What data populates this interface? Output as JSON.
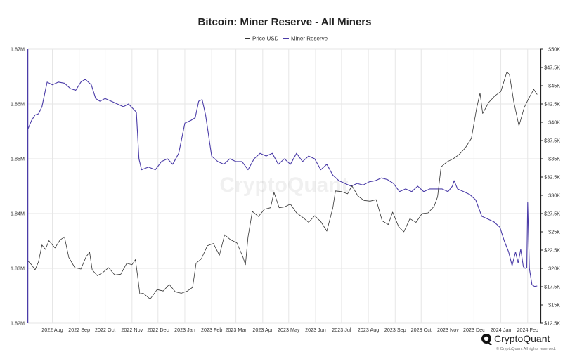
{
  "chart_data": {
    "type": "line",
    "title": "Bitcoin: Miner Reserve - All Miners",
    "legend": {
      "placement": "top-center",
      "entries": [
        "Price USD",
        "Miner Reserve"
      ]
    },
    "grid": true,
    "x_ticks": [
      "2022 Aug",
      "2022 Sep",
      "2022 Oct",
      "2022 Nov",
      "2022 Dec",
      "2023 Jan",
      "2023 Feb",
      "2023 Mar",
      "2023 Apr",
      "2023 May",
      "2023 Jun",
      "2023 Jul",
      "2023 Aug",
      "2023 Sep",
      "2023 Oct",
      "2023 Nov",
      "2023 Dec",
      "2024 Jan",
      "2024 Feb"
    ],
    "x_range": [
      "2022-07-04",
      "2024-02-15"
    ],
    "y_left": {
      "ticks": [
        "1.87M",
        "1.86M",
        "1.85M",
        "1.84M",
        "1.83M",
        "1.82M"
      ],
      "range": [
        1.82,
        1.87
      ],
      "unit": "M BTC"
    },
    "y_right": {
      "ticks": [
        "$50K",
        "$47.5K",
        "$45K",
        "$42.5K",
        "$40K",
        "$37.5K",
        "$35K",
        "$32.5K",
        "$30K",
        "$27.5K",
        "$25K",
        "$22.5K",
        "$20K",
        "$17.5K",
        "$15K",
        "$12.5K"
      ],
      "range": [
        12.5,
        50
      ],
      "unit": "K USD"
    },
    "series": [
      {
        "name": "Miner Reserve",
        "color": "#4b3ca8",
        "axis": "left",
        "points": [
          [
            "2022-07-04",
            1.8555
          ],
          [
            "2022-07-08",
            1.857
          ],
          [
            "2022-07-12",
            1.858
          ],
          [
            "2022-07-16",
            1.8582
          ],
          [
            "2022-07-20",
            1.8595
          ],
          [
            "2022-07-24",
            1.8625
          ],
          [
            "2022-07-26",
            1.864
          ],
          [
            "2022-08-01",
            1.8635
          ],
          [
            "2022-08-08",
            1.864
          ],
          [
            "2022-08-15",
            1.8638
          ],
          [
            "2022-08-22",
            1.8628
          ],
          [
            "2022-08-28",
            1.8625
          ],
          [
            "2022-09-03",
            1.864
          ],
          [
            "2022-09-08",
            1.8645
          ],
          [
            "2022-09-15",
            1.8635
          ],
          [
            "2022-09-20",
            1.861
          ],
          [
            "2022-09-25",
            1.8605
          ],
          [
            "2022-10-01",
            1.861
          ],
          [
            "2022-10-08",
            1.8605
          ],
          [
            "2022-10-15",
            1.86
          ],
          [
            "2022-10-22",
            1.8595
          ],
          [
            "2022-10-28",
            1.86
          ],
          [
            "2022-11-03",
            1.859
          ],
          [
            "2022-11-06",
            1.8585
          ],
          [
            "2022-11-09",
            1.85
          ],
          [
            "2022-11-12",
            1.848
          ],
          [
            "2022-11-20",
            1.8485
          ],
          [
            "2022-11-28",
            1.848
          ],
          [
            "2022-12-05",
            1.8495
          ],
          [
            "2022-12-12",
            1.85
          ],
          [
            "2022-12-18",
            1.849
          ],
          [
            "2022-12-25",
            1.851
          ],
          [
            "2023-01-01",
            1.8565
          ],
          [
            "2023-01-08",
            1.857
          ],
          [
            "2023-01-13",
            1.8575
          ],
          [
            "2023-01-17",
            1.8605
          ],
          [
            "2023-01-21",
            1.8608
          ],
          [
            "2023-01-25",
            1.858
          ],
          [
            "2023-02-01",
            1.8505
          ],
          [
            "2023-02-08",
            1.8495
          ],
          [
            "2023-02-15",
            1.849
          ],
          [
            "2023-02-22",
            1.85
          ],
          [
            "2023-03-01",
            1.8495
          ],
          [
            "2023-03-08",
            1.8495
          ],
          [
            "2023-03-15",
            1.848
          ],
          [
            "2023-03-22",
            1.85
          ],
          [
            "2023-03-29",
            1.851
          ],
          [
            "2023-04-05",
            1.8505
          ],
          [
            "2023-04-12",
            1.851
          ],
          [
            "2023-04-19",
            1.849
          ],
          [
            "2023-04-26",
            1.85
          ],
          [
            "2023-05-03",
            1.849
          ],
          [
            "2023-05-10",
            1.851
          ],
          [
            "2023-05-17",
            1.8495
          ],
          [
            "2023-05-24",
            1.8505
          ],
          [
            "2023-05-31",
            1.85
          ],
          [
            "2023-06-07",
            1.848
          ],
          [
            "2023-06-14",
            1.849
          ],
          [
            "2023-06-21",
            1.847
          ],
          [
            "2023-06-28",
            1.846
          ],
          [
            "2023-07-05",
            1.8455
          ],
          [
            "2023-07-12",
            1.845
          ],
          [
            "2023-07-19",
            1.8455
          ],
          [
            "2023-07-26",
            1.8452
          ],
          [
            "2023-08-02",
            1.8458
          ],
          [
            "2023-08-09",
            1.846
          ],
          [
            "2023-08-16",
            1.8465
          ],
          [
            "2023-08-23",
            1.8462
          ],
          [
            "2023-08-30",
            1.8455
          ],
          [
            "2023-09-06",
            1.844
          ],
          [
            "2023-09-13",
            1.8445
          ],
          [
            "2023-09-20",
            1.844
          ],
          [
            "2023-09-27",
            1.845
          ],
          [
            "2023-10-04",
            1.844
          ],
          [
            "2023-10-11",
            1.8445
          ],
          [
            "2023-10-18",
            1.8445
          ],
          [
            "2023-10-25",
            1.8445
          ],
          [
            "2023-11-01",
            1.844
          ],
          [
            "2023-11-06",
            1.845
          ],
          [
            "2023-11-08",
            1.846
          ],
          [
            "2023-11-12",
            1.8445
          ],
          [
            "2023-11-19",
            1.844
          ],
          [
            "2023-11-26",
            1.8435
          ],
          [
            "2023-12-03",
            1.8425
          ],
          [
            "2023-12-10",
            1.8395
          ],
          [
            "2023-12-17",
            1.839
          ],
          [
            "2023-12-24",
            1.8385
          ],
          [
            "2023-12-31",
            1.8375
          ],
          [
            "2024-01-05",
            1.835
          ],
          [
            "2024-01-10",
            1.833
          ],
          [
            "2024-01-14",
            1.8305
          ],
          [
            "2024-01-18",
            1.833
          ],
          [
            "2024-01-21",
            1.831
          ],
          [
            "2024-01-24",
            1.8335
          ],
          [
            "2024-01-27",
            1.8303
          ],
          [
            "2024-01-29",
            1.83
          ],
          [
            "2024-01-31",
            1.8301
          ],
          [
            "2024-02-01",
            1.842
          ],
          [
            "2024-02-03",
            1.83
          ],
          [
            "2024-02-06",
            1.827
          ],
          [
            "2024-02-09",
            1.8267
          ],
          [
            "2024-02-12",
            1.8268
          ]
        ]
      },
      {
        "name": "Price USD",
        "color": "#333333",
        "axis": "right",
        "points": [
          [
            "2022-07-04",
            21.0
          ],
          [
            "2022-07-08",
            20.5
          ],
          [
            "2022-07-12",
            19.8
          ],
          [
            "2022-07-16",
            20.9
          ],
          [
            "2022-07-20",
            23.2
          ],
          [
            "2022-07-24",
            22.6
          ],
          [
            "2022-07-28",
            23.8
          ],
          [
            "2022-08-04",
            22.8
          ],
          [
            "2022-08-10",
            23.9
          ],
          [
            "2022-08-15",
            24.3
          ],
          [
            "2022-08-20",
            21.5
          ],
          [
            "2022-08-27",
            20.1
          ],
          [
            "2022-09-03",
            19.9
          ],
          [
            "2022-09-09",
            21.6
          ],
          [
            "2022-09-13",
            22.2
          ],
          [
            "2022-09-16",
            19.8
          ],
          [
            "2022-09-22",
            19.0
          ],
          [
            "2022-09-28",
            19.4
          ],
          [
            "2022-10-05",
            20.1
          ],
          [
            "2022-10-12",
            19.1
          ],
          [
            "2022-10-19",
            19.2
          ],
          [
            "2022-10-26",
            20.7
          ],
          [
            "2022-11-01",
            20.5
          ],
          [
            "2022-11-05",
            21.2
          ],
          [
            "2022-11-08",
            18.5
          ],
          [
            "2022-11-10",
            16.5
          ],
          [
            "2022-11-14",
            16.6
          ],
          [
            "2022-11-22",
            15.8
          ],
          [
            "2022-11-30",
            17.1
          ],
          [
            "2022-12-07",
            16.9
          ],
          [
            "2022-12-14",
            17.8
          ],
          [
            "2022-12-21",
            16.8
          ],
          [
            "2022-12-28",
            16.6
          ],
          [
            "2023-01-04",
            16.9
          ],
          [
            "2023-01-10",
            17.4
          ],
          [
            "2023-01-14",
            20.7
          ],
          [
            "2023-01-20",
            21.3
          ],
          [
            "2023-01-27",
            23.1
          ],
          [
            "2023-02-03",
            23.4
          ],
          [
            "2023-02-10",
            21.8
          ],
          [
            "2023-02-16",
            24.6
          ],
          [
            "2023-02-23",
            23.9
          ],
          [
            "2023-03-02",
            23.5
          ],
          [
            "2023-03-09",
            21.6
          ],
          [
            "2023-03-12",
            20.5
          ],
          [
            "2023-03-15",
            24.3
          ],
          [
            "2023-03-20",
            27.8
          ],
          [
            "2023-03-27",
            27.1
          ],
          [
            "2023-04-03",
            28.1
          ],
          [
            "2023-04-10",
            28.3
          ],
          [
            "2023-04-14",
            30.4
          ],
          [
            "2023-04-20",
            28.3
          ],
          [
            "2023-04-26",
            28.4
          ],
          [
            "2023-05-03",
            28.8
          ],
          [
            "2023-05-10",
            27.6
          ],
          [
            "2023-05-17",
            27.0
          ],
          [
            "2023-05-24",
            26.3
          ],
          [
            "2023-05-31",
            27.2
          ],
          [
            "2023-06-07",
            26.4
          ],
          [
            "2023-06-14",
            25.1
          ],
          [
            "2023-06-21",
            28.3
          ],
          [
            "2023-06-24",
            30.6
          ],
          [
            "2023-07-01",
            30.5
          ],
          [
            "2023-07-08",
            30.2
          ],
          [
            "2023-07-13",
            31.3
          ],
          [
            "2023-07-20",
            29.9
          ],
          [
            "2023-07-27",
            29.3
          ],
          [
            "2023-08-03",
            29.2
          ],
          [
            "2023-08-10",
            29.4
          ],
          [
            "2023-08-17",
            26.5
          ],
          [
            "2023-08-24",
            26.0
          ],
          [
            "2023-08-29",
            27.7
          ],
          [
            "2023-09-05",
            25.7
          ],
          [
            "2023-09-11",
            25.0
          ],
          [
            "2023-09-18",
            26.8
          ],
          [
            "2023-09-25",
            26.3
          ],
          [
            "2023-10-02",
            27.5
          ],
          [
            "2023-10-09",
            27.6
          ],
          [
            "2023-10-16",
            28.5
          ],
          [
            "2023-10-20",
            29.8
          ],
          [
            "2023-10-24",
            33.9
          ],
          [
            "2023-10-31",
            34.6
          ],
          [
            "2023-11-07",
            35.0
          ],
          [
            "2023-11-14",
            35.6
          ],
          [
            "2023-11-21",
            36.5
          ],
          [
            "2023-11-28",
            37.8
          ],
          [
            "2023-12-04",
            41.9
          ],
          [
            "2023-12-08",
            44.0
          ],
          [
            "2023-12-11",
            41.2
          ],
          [
            "2023-12-18",
            42.7
          ],
          [
            "2023-12-25",
            43.6
          ],
          [
            "2024-01-01",
            44.2
          ],
          [
            "2024-01-08",
            46.9
          ],
          [
            "2024-01-11",
            46.5
          ],
          [
            "2024-01-16",
            42.8
          ],
          [
            "2024-01-22",
            39.5
          ],
          [
            "2024-01-28",
            42.0
          ],
          [
            "2024-02-02",
            43.2
          ],
          [
            "2024-02-08",
            44.5
          ],
          [
            "2024-02-12",
            43.8
          ]
        ]
      }
    ]
  },
  "watermark": "CryptoQuant",
  "brand": {
    "name": "CryptoQuant",
    "copyright": "© CryptoQuant All rights reserved."
  }
}
